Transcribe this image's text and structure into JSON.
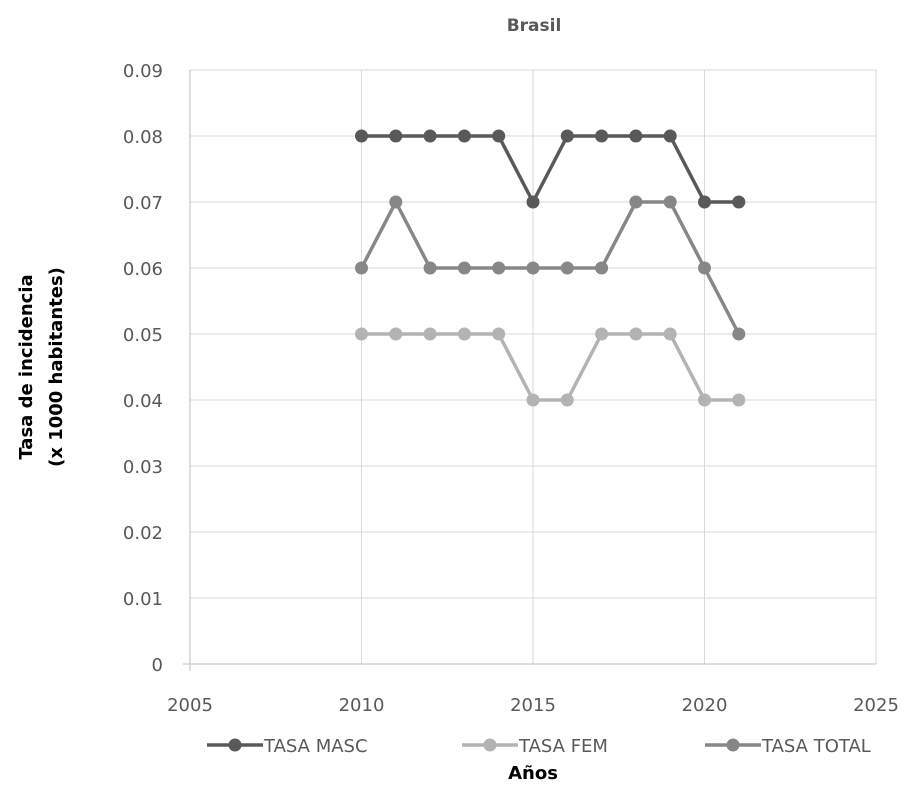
{
  "chart_data": {
    "type": "scatter",
    "title": "Brasil",
    "xlabel": "Años",
    "ylabel_lines": [
      "Tasa de incidencia",
      "(x 1000 habitantes)"
    ],
    "xlim": [
      2005,
      2025
    ],
    "ylim": [
      0,
      0.09
    ],
    "x_ticks": [
      2005,
      2010,
      2015,
      2020,
      2025
    ],
    "y_ticks": [
      0,
      0.01,
      0.02,
      0.03,
      0.04,
      0.05,
      0.06,
      0.07,
      0.08,
      0.09
    ],
    "y_tick_labels": [
      "0",
      "0.01",
      "0.02",
      "0.03",
      "0.04",
      "0.05",
      "0.06",
      "0.07",
      "0.08",
      "0.09"
    ],
    "grid": true,
    "legend_position": "bottom",
    "x": [
      2010,
      2011,
      2012,
      2013,
      2014,
      2015,
      2016,
      2017,
      2018,
      2019,
      2020,
      2021
    ],
    "series": [
      {
        "name": "TASA MASC",
        "color": "#595959",
        "values": [
          0.08,
          0.08,
          0.08,
          0.08,
          0.08,
          0.07,
          0.08,
          0.08,
          0.08,
          0.08,
          0.07,
          0.07
        ]
      },
      {
        "name": "TASA FEM",
        "color": "#b3b3b3",
        "values": [
          0.05,
          0.05,
          0.05,
          0.05,
          0.05,
          0.04,
          0.04,
          0.05,
          0.05,
          0.05,
          0.04,
          0.04
        ]
      },
      {
        "name": "TASA TOTAL",
        "color": "#878787",
        "values": [
          0.06,
          0.07,
          0.06,
          0.06,
          0.06,
          0.06,
          0.06,
          0.06,
          0.07,
          0.07,
          0.06,
          0.05
        ]
      }
    ]
  }
}
